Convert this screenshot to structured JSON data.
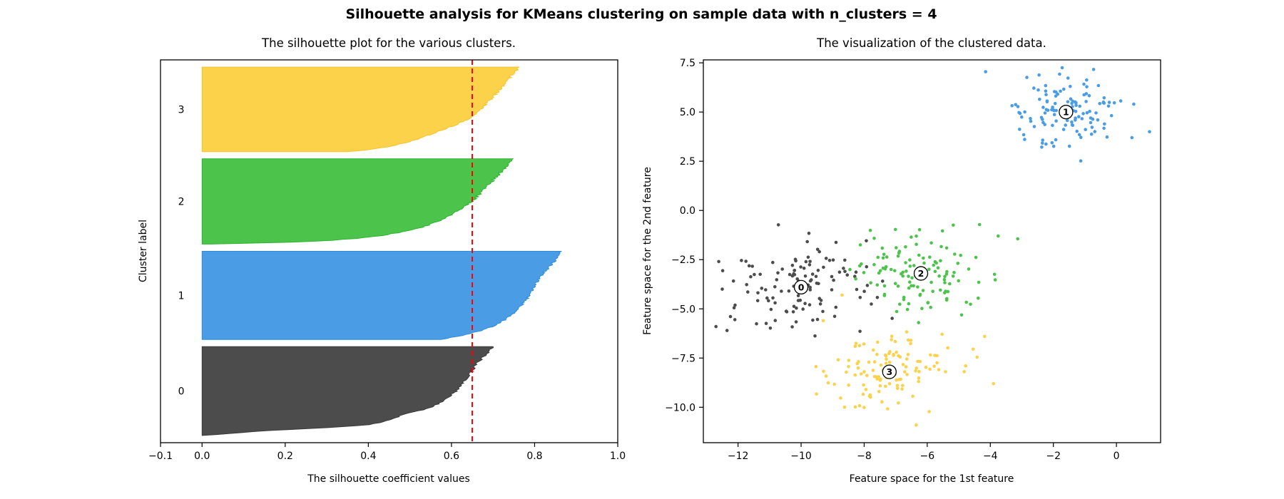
{
  "figure": {
    "title": "Silhouette analysis for KMeans clustering on sample data with n_clusters = 4",
    "n_clusters": 4,
    "background_color": "#ffffff"
  },
  "chart_data": [
    {
      "type": "area",
      "id": "silhouette-plot",
      "title": "The silhouette plot for the various clusters.",
      "xlabel": "The silhouette coefficient values",
      "ylabel": "Cluster label",
      "xlim": [
        -0.1,
        1.0
      ],
      "x_ticks": [
        {
          "value": -0.1,
          "label": "−0.1"
        },
        {
          "value": 0.0,
          "label": "0.0"
        },
        {
          "value": 0.2,
          "label": "0.2"
        },
        {
          "value": 0.4,
          "label": "0.4"
        },
        {
          "value": 0.6,
          "label": "0.6"
        },
        {
          "value": 0.8,
          "label": "0.8"
        },
        {
          "value": 1.0,
          "label": "1.0"
        }
      ],
      "y_ticks": [],
      "average_silhouette": 0.65,
      "avg_line": {
        "color": "#ff0000",
        "style": "dashed"
      },
      "band_gap_units": 10,
      "clusters": [
        {
          "label": "0",
          "count": 124,
          "color": "#4c4c4c",
          "edge": "#3a3a3a",
          "silhouette_min": 0.0,
          "silhouette_max": 0.7,
          "profile": [
            [
              0,
              0.0
            ],
            [
              0.03,
              0.09
            ],
            [
              0.05,
              0.14
            ],
            [
              0.09,
              0.31
            ],
            [
              0.12,
              0.4
            ],
            [
              0.17,
              0.45
            ],
            [
              0.23,
              0.48
            ],
            [
              0.3,
              0.54
            ],
            [
              0.36,
              0.57
            ],
            [
              0.42,
              0.59
            ],
            [
              0.5,
              0.61
            ],
            [
              0.6,
              0.63
            ],
            [
              0.7,
              0.645
            ],
            [
              0.8,
              0.66
            ],
            [
              0.9,
              0.68
            ],
            [
              1,
              0.7
            ]
          ]
        },
        {
          "label": "1",
          "count": 123,
          "color": "#4a9de4",
          "edge": "#2f8cdc",
          "silhouette_min": 0.575,
          "silhouette_max": 0.865,
          "profile": [
            [
              0,
              0.575
            ],
            [
              0.05,
              0.63
            ],
            [
              0.1,
              0.67
            ],
            [
              0.15,
              0.7
            ],
            [
              0.2,
              0.72
            ],
            [
              0.3,
              0.75
            ],
            [
              0.45,
              0.78
            ],
            [
              0.6,
              0.8
            ],
            [
              0.75,
              0.82
            ],
            [
              0.9,
              0.85
            ],
            [
              1,
              0.865
            ]
          ]
        },
        {
          "label": "2",
          "count": 119,
          "color": "#4cc44c",
          "edge": "#2eb42e",
          "silhouette_min": 0.02,
          "silhouette_max": 0.748,
          "profile": [
            [
              0,
              0.02
            ],
            [
              0.01,
              0.1
            ],
            [
              0.02,
              0.2
            ],
            [
              0.04,
              0.3
            ],
            [
              0.07,
              0.38
            ],
            [
              0.1,
              0.43
            ],
            [
              0.15,
              0.49
            ],
            [
              0.2,
              0.53
            ],
            [
              0.25,
              0.56
            ],
            [
              0.32,
              0.59
            ],
            [
              0.4,
              0.62
            ],
            [
              0.5,
              0.65
            ],
            [
              0.6,
              0.67
            ],
            [
              0.7,
              0.69
            ],
            [
              0.8,
              0.71
            ],
            [
              0.9,
              0.73
            ],
            [
              1,
              0.748
            ]
          ]
        },
        {
          "label": "3",
          "count": 118,
          "color": "#fcd24b",
          "edge": "#f5c32a",
          "silhouette_min": 0.35,
          "silhouette_max": 0.762,
          "profile": [
            [
              0,
              0.35
            ],
            [
              0.02,
              0.4
            ],
            [
              0.05,
              0.44
            ],
            [
              0.08,
              0.47
            ],
            [
              0.12,
              0.5
            ],
            [
              0.17,
              0.53
            ],
            [
              0.22,
              0.56
            ],
            [
              0.28,
              0.59
            ],
            [
              0.33,
              0.615
            ],
            [
              0.38,
              0.64
            ],
            [
              0.45,
              0.66
            ],
            [
              0.55,
              0.68
            ],
            [
              0.65,
              0.7
            ],
            [
              0.75,
              0.72
            ],
            [
              0.87,
              0.74
            ],
            [
              1,
              0.762
            ]
          ]
        }
      ]
    },
    {
      "type": "scatter",
      "id": "clustered-data-plot",
      "title": "The visualization of the clustered data.",
      "xlabel": "Feature space for the 1st feature",
      "ylabel": "Feature space for the 2nd feature",
      "xlim": [
        -13.1,
        1.4
      ],
      "ylim": [
        -11.8,
        7.65
      ],
      "x_ticks": [
        {
          "value": -12,
          "label": "−12"
        },
        {
          "value": -10,
          "label": "−10"
        },
        {
          "value": -8,
          "label": "−8"
        },
        {
          "value": -6,
          "label": "−6"
        },
        {
          "value": -4,
          "label": "−4"
        },
        {
          "value": -2,
          "label": "−2"
        },
        {
          "value": 0,
          "label": "0"
        }
      ],
      "y_ticks": [
        {
          "value": 7.5,
          "label": "7.5"
        },
        {
          "value": 5.0,
          "label": "5.0"
        },
        {
          "value": 2.5,
          "label": "2.5"
        },
        {
          "value": 0.0,
          "label": "0.0"
        },
        {
          "value": -2.5,
          "label": "−2.5"
        },
        {
          "value": -5.0,
          "label": "−5.0"
        },
        {
          "value": -7.5,
          "label": "−7.5"
        },
        {
          "value": -10.0,
          "label": "−10.0"
        }
      ],
      "center_marker": {
        "fill": "#ffffff",
        "edge": "#000000"
      },
      "clusters": [
        {
          "label": "0",
          "color": "#4c4c4c",
          "center": [
            -10.0,
            -3.9
          ],
          "std": [
            1.15,
            1.1
          ],
          "count": 120,
          "extra_points": [
            [
              -12.7,
              -5.9
            ],
            [
              -12.35,
              -6.1
            ],
            [
              -12.1,
              -5.55
            ],
            [
              -12.5,
              -4.0
            ]
          ]
        },
        {
          "label": "1",
          "color": "#4a9de4",
          "center": [
            -1.6,
            5.0
          ],
          "std": [
            0.85,
            0.95
          ],
          "count": 122,
          "extra_points": [
            [
              -4.15,
              7.05
            ],
            [
              1.05,
              4.0
            ],
            [
              0.55,
              5.4
            ]
          ]
        },
        {
          "label": "2",
          "color": "#4cc44c",
          "center": [
            -6.2,
            -3.2
          ],
          "std": [
            1.0,
            1.05
          ],
          "count": 120,
          "extra_points": [
            [
              -3.75,
              -1.3
            ]
          ]
        },
        {
          "label": "3",
          "color": "#fcd24b",
          "center": [
            -7.2,
            -8.2
          ],
          "std": [
            1.05,
            1.0
          ],
          "count": 118,
          "extra_points": [
            [
              -3.9,
              -8.8
            ],
            [
              -6.35,
              -10.9
            ],
            [
              -8.7,
              -4.3
            ],
            [
              -9.3,
              -5.6
            ]
          ]
        }
      ]
    }
  ]
}
